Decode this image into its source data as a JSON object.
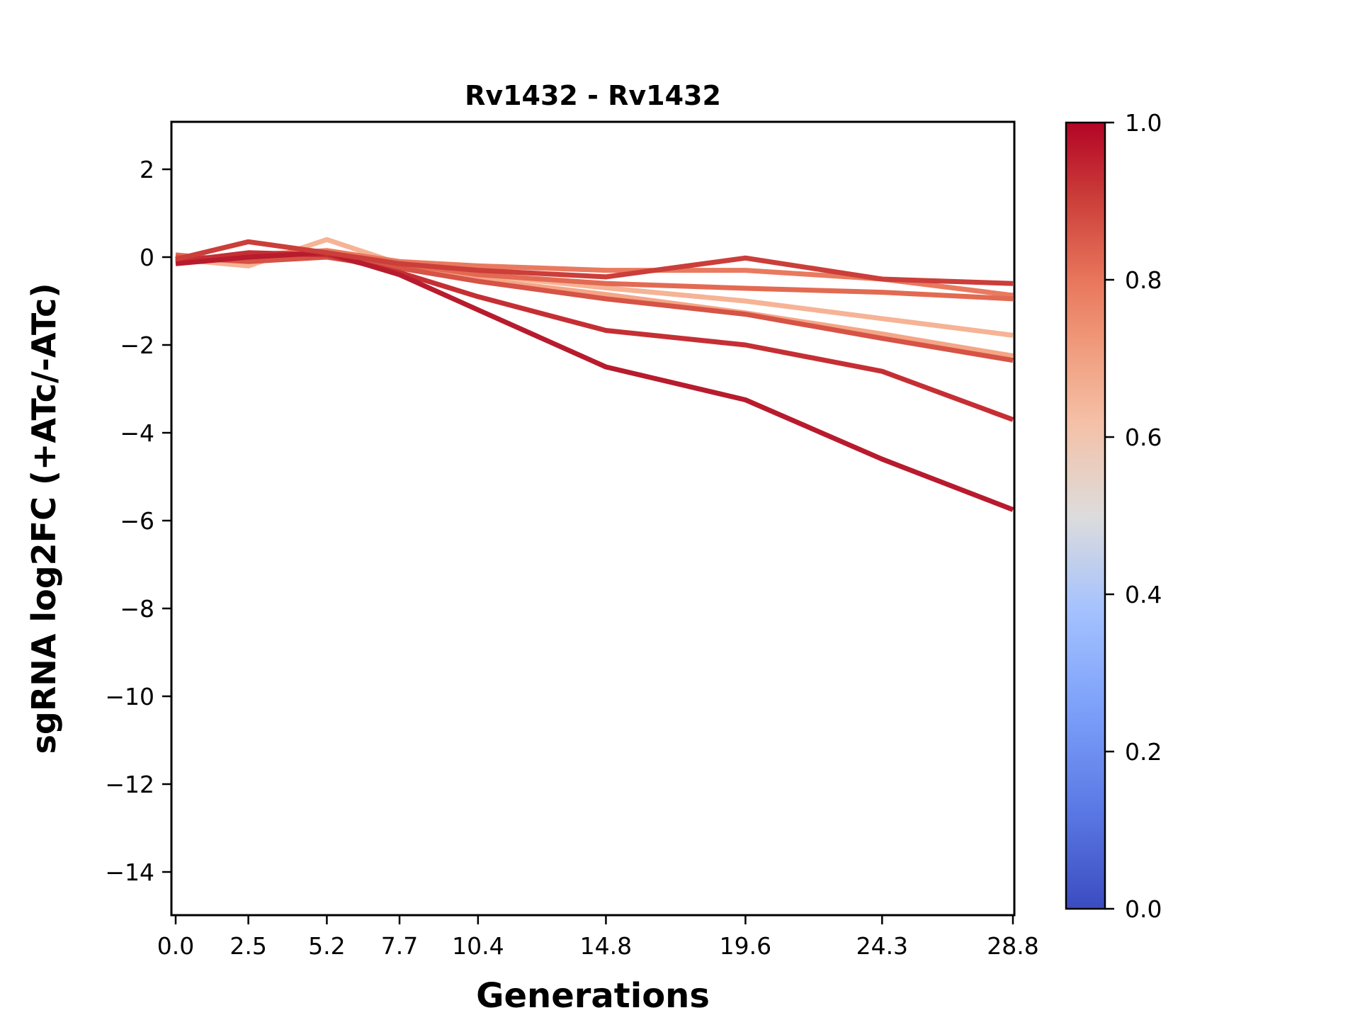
{
  "window": {
    "title": "Rv1432 - Rv1432"
  },
  "chart_data": {
    "type": "line",
    "title": "Rv1432 - Rv1432",
    "xlabel": "Generations",
    "ylabel": "sgRNA log2FC (+ATc/-ATc)",
    "x": [
      0.0,
      2.5,
      5.2,
      7.7,
      10.4,
      14.8,
      19.6,
      24.3,
      28.8
    ],
    "x_tick_labels": [
      "0.0",
      "2.5",
      "5.2",
      "7.7",
      "10.4",
      "14.8",
      "19.6",
      "24.3",
      "28.8"
    ],
    "y_ticks": [
      2,
      0,
      -2,
      -4,
      -6,
      -8,
      -10,
      -12,
      -14
    ],
    "y_tick_labels": [
      "2",
      "0",
      "−2",
      "−4",
      "−6",
      "−8",
      "−10",
      "−12",
      "−14"
    ],
    "ylim": [
      -15.0,
      3.1
    ],
    "xlim": [
      -0.15,
      28.85
    ],
    "grid": false,
    "legend": "none",
    "series": [
      {
        "id": "line-1",
        "color_value": 0.62,
        "color": "#f6b395",
        "values": [
          -0.05,
          -0.2,
          0.4,
          -0.15,
          -0.4,
          -0.7,
          -1.0,
          -1.4,
          -1.78
        ]
      },
      {
        "id": "line-2",
        "color_value": 0.65,
        "color": "#f4a687",
        "values": [
          -0.1,
          0.0,
          0.1,
          -0.2,
          -0.5,
          -0.85,
          -1.27,
          -1.75,
          -2.25
        ]
      },
      {
        "id": "line-3",
        "color_value": 0.75,
        "color": "#e97a5f",
        "values": [
          -0.1,
          0.05,
          0.15,
          -0.1,
          -0.2,
          -0.3,
          -0.3,
          -0.5,
          -0.87
        ]
      },
      {
        "id": "line-4",
        "color_value": 0.78,
        "color": "#e36a52",
        "values": [
          0.05,
          -0.1,
          0.05,
          -0.15,
          -0.4,
          -0.6,
          -0.71,
          -0.8,
          -0.95
        ]
      },
      {
        "id": "line-5",
        "color_value": 0.85,
        "color": "#d65345",
        "values": [
          0.0,
          -0.1,
          0.0,
          -0.25,
          -0.55,
          -0.95,
          -1.3,
          -1.85,
          -2.35
        ]
      },
      {
        "id": "line-6",
        "color_value": 0.95,
        "color": "#c52f34",
        "values": [
          -0.1,
          0.1,
          0.05,
          -0.35,
          -0.9,
          -1.67,
          -2.0,
          -2.6,
          -3.7
        ]
      },
      {
        "id": "line-7",
        "color_value": 1.0,
        "color": "#b81b2d",
        "values": [
          -0.15,
          0.0,
          0.1,
          -0.4,
          -1.2,
          -2.5,
          -3.25,
          -4.6,
          -5.75
        ]
      },
      {
        "id": "line-8",
        "color_value": 0.92,
        "color": "#cb3e3a",
        "values": [
          -0.05,
          0.35,
          0.1,
          -0.15,
          -0.3,
          -0.45,
          -0.02,
          -0.5,
          -0.6
        ]
      }
    ],
    "colorbar": {
      "range": [
        0.0,
        1.0
      ],
      "tick_values": [
        0.0,
        0.2,
        0.4,
        0.6,
        0.8,
        1.0
      ],
      "tick_labels": [
        "0.0",
        "0.2",
        "0.4",
        "0.6",
        "0.8",
        "1.0"
      ],
      "colormap": "coolwarm",
      "gradient": [
        {
          "pos": 0.0,
          "color": "#3b4cc0"
        },
        {
          "pos": 0.12,
          "color": "#5977e3"
        },
        {
          "pos": 0.25,
          "color": "#7b9ff9"
        },
        {
          "pos": 0.38,
          "color": "#a5c2fe"
        },
        {
          "pos": 0.5,
          "color": "#dddcdc"
        },
        {
          "pos": 0.62,
          "color": "#f5c0a6"
        },
        {
          "pos": 0.72,
          "color": "#f0997a"
        },
        {
          "pos": 0.8,
          "color": "#e8765c"
        },
        {
          "pos": 0.9,
          "color": "#cc403a"
        },
        {
          "pos": 1.0,
          "color": "#b40426"
        }
      ]
    }
  }
}
